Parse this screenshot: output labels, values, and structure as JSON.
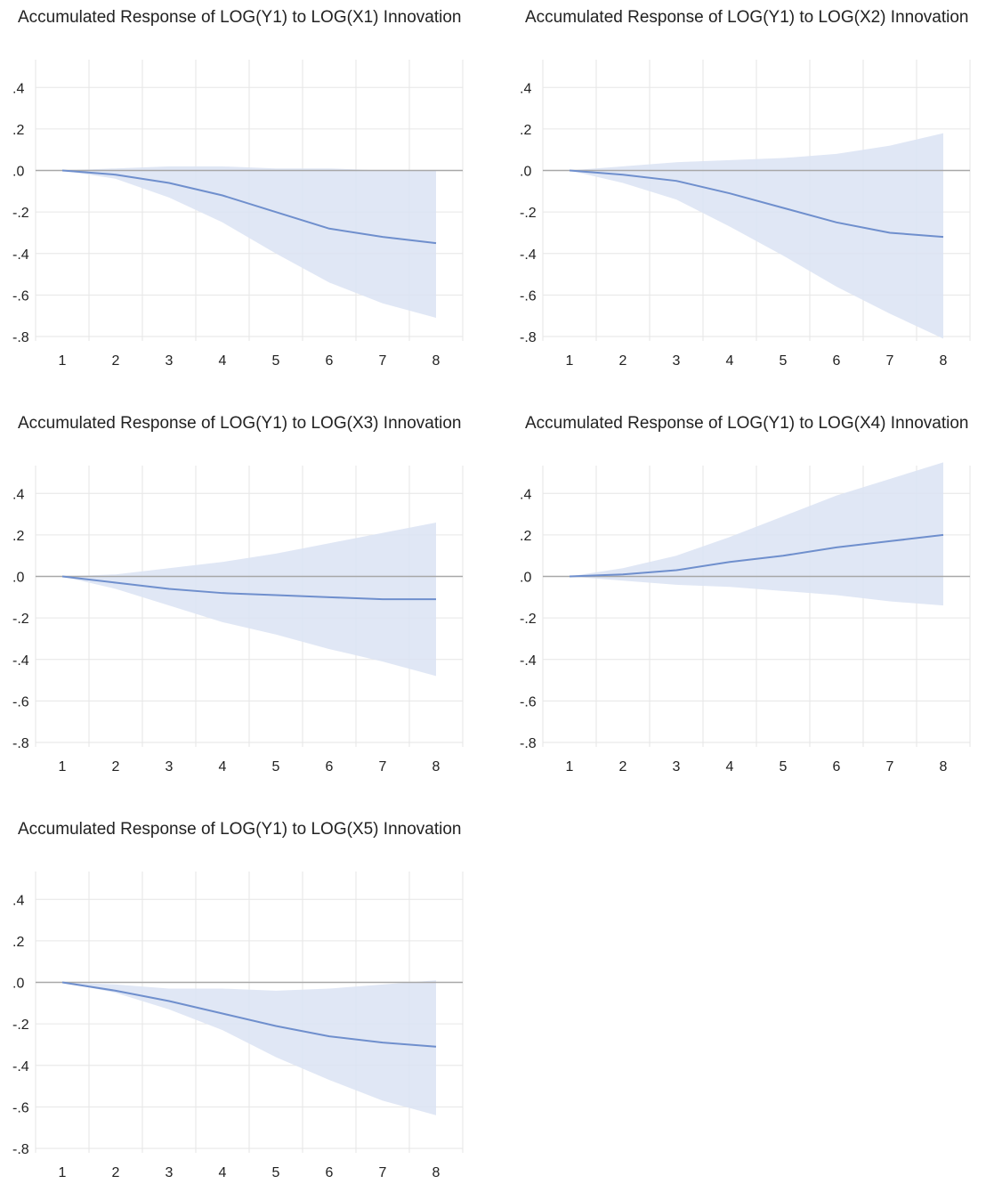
{
  "chart_data": [
    {
      "type": "area",
      "title": "Accumulated Response of LOG(Y1) to LOG(X1) Innovation",
      "x": [
        1,
        2,
        3,
        4,
        5,
        6,
        7,
        8
      ],
      "series": [
        {
          "values": [
            0.0,
            -0.02,
            -0.06,
            -0.12,
            -0.2,
            -0.28,
            -0.32,
            -0.35
          ]
        },
        {
          "values": [
            0.0,
            -0.04,
            -0.13,
            -0.25,
            -0.4,
            -0.54,
            -0.64,
            -0.71
          ]
        },
        {
          "values": [
            0.0,
            0.01,
            0.02,
            0.02,
            0.01,
            0.01,
            0.0,
            0.0
          ]
        }
      ],
      "ylim": [
        -0.8,
        0.4
      ],
      "yticks": [
        ".4",
        ".2",
        ".0",
        "-.2",
        "-.4",
        "-.6",
        "-.8"
      ],
      "xticks": [
        "1",
        "2",
        "3",
        "4",
        "5",
        "6",
        "7",
        "8"
      ],
      "grid": true
    },
    {
      "type": "area",
      "title": "Accumulated Response of LOG(Y1) to LOG(X2) Innovation",
      "x": [
        1,
        2,
        3,
        4,
        5,
        6,
        7,
        8
      ],
      "series": [
        {
          "values": [
            0.0,
            -0.02,
            -0.05,
            -0.11,
            -0.18,
            -0.25,
            -0.3,
            -0.32
          ]
        },
        {
          "values": [
            0.0,
            -0.06,
            -0.14,
            -0.27,
            -0.41,
            -0.56,
            -0.69,
            -0.81
          ]
        },
        {
          "values": [
            0.0,
            0.02,
            0.04,
            0.05,
            0.06,
            0.08,
            0.12,
            0.18
          ]
        }
      ],
      "ylim": [
        -0.8,
        0.4
      ],
      "yticks": [
        ".4",
        ".2",
        ".0",
        "-.2",
        "-.4",
        "-.6",
        "-.8"
      ],
      "xticks": [
        "1",
        "2",
        "3",
        "4",
        "5",
        "6",
        "7",
        "8"
      ],
      "grid": true
    },
    {
      "type": "area",
      "title": "Accumulated Response of LOG(Y1) to LOG(X3) Innovation",
      "x": [
        1,
        2,
        3,
        4,
        5,
        6,
        7,
        8
      ],
      "series": [
        {
          "values": [
            0.0,
            -0.03,
            -0.06,
            -0.08,
            -0.09,
            -0.1,
            -0.11,
            -0.11
          ]
        },
        {
          "values": [
            0.0,
            -0.06,
            -0.14,
            -0.22,
            -0.28,
            -0.35,
            -0.41,
            -0.48
          ]
        },
        {
          "values": [
            0.0,
            0.01,
            0.04,
            0.07,
            0.11,
            0.16,
            0.21,
            0.26
          ]
        }
      ],
      "ylim": [
        -0.8,
        0.4
      ],
      "yticks": [
        ".4",
        ".2",
        ".0",
        "-.2",
        "-.4",
        "-.6",
        "-.8"
      ],
      "xticks": [
        "1",
        "2",
        "3",
        "4",
        "5",
        "6",
        "7",
        "8"
      ],
      "grid": true
    },
    {
      "type": "area",
      "title": "Accumulated Response of LOG(Y1) to LOG(X4) Innovation",
      "x": [
        1,
        2,
        3,
        4,
        5,
        6,
        7,
        8
      ],
      "series": [
        {
          "values": [
            0.0,
            0.01,
            0.03,
            0.07,
            0.1,
            0.14,
            0.17,
            0.2
          ]
        },
        {
          "values": [
            0.0,
            -0.02,
            -0.04,
            -0.05,
            -0.07,
            -0.09,
            -0.12,
            -0.14
          ]
        },
        {
          "values": [
            0.0,
            0.04,
            0.1,
            0.19,
            0.29,
            0.39,
            0.47,
            0.55
          ]
        }
      ],
      "ylim": [
        -0.8,
        0.4
      ],
      "yticks": [
        ".4",
        ".2",
        ".0",
        "-.2",
        "-.4",
        "-.6",
        "-.8"
      ],
      "xticks": [
        "1",
        "2",
        "3",
        "4",
        "5",
        "6",
        "7",
        "8"
      ],
      "grid": true
    },
    {
      "type": "area",
      "title": "Accumulated Response of LOG(Y1) to LOG(X5) Innovation",
      "x": [
        1,
        2,
        3,
        4,
        5,
        6,
        7,
        8
      ],
      "series": [
        {
          "values": [
            0.0,
            -0.04,
            -0.09,
            -0.15,
            -0.21,
            -0.26,
            -0.29,
            -0.31
          ]
        },
        {
          "values": [
            0.0,
            -0.05,
            -0.13,
            -0.23,
            -0.36,
            -0.47,
            -0.57,
            -0.64
          ]
        },
        {
          "values": [
            0.0,
            -0.01,
            -0.03,
            -0.03,
            -0.04,
            -0.03,
            -0.01,
            0.01
          ]
        }
      ],
      "ylim": [
        -0.8,
        0.4
      ],
      "yticks": [
        ".4",
        ".2",
        ".0",
        "-.2",
        "-.4",
        "-.6",
        "-.8"
      ],
      "xticks": [
        "1",
        "2",
        "3",
        "4",
        "5",
        "6",
        "7",
        "8"
      ],
      "grid": true
    }
  ],
  "colors": {
    "line": "#6f8fcd",
    "band": "#dbe3f3",
    "grid": "#e6e6e6",
    "zero_line": "#a8a8a8",
    "text": "#222222"
  }
}
